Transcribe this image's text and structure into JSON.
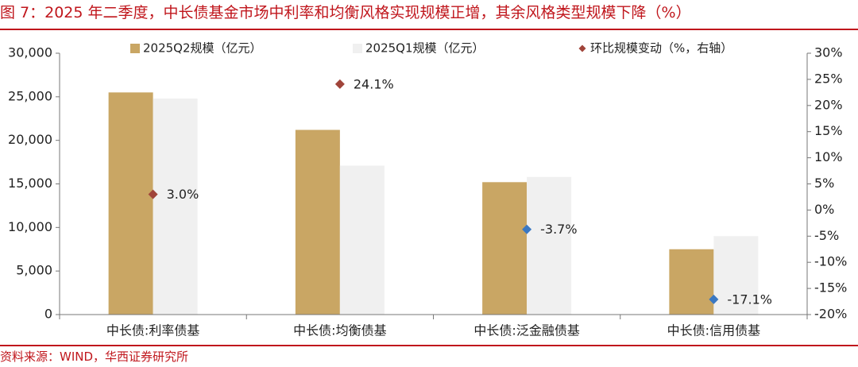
{
  "header": {
    "title": "图 7：2025 年二季度，中长债基金市场中利率和均衡风格实现规模正增，其余风格类型规模下降（%）"
  },
  "footer": {
    "source": "资料来源：WIND，华西证券研究所"
  },
  "colors": {
    "title_red": "#c0161c",
    "q2_bar": "#c9a664",
    "q1_bar": "#f0f0f0",
    "marker_positive": "#a0443a",
    "marker_negative": "#3a78c2"
  },
  "chart_data": {
    "type": "bar",
    "title": "",
    "categories": [
      "中长债:利率债基",
      "中长债:均衡债基",
      "中长债:泛金融债基",
      "中长债:信用债基"
    ],
    "series": [
      {
        "name": "2025Q2规模（亿元）",
        "kind": "bar",
        "axis": "left",
        "values": [
          25500,
          21200,
          15200,
          7500
        ]
      },
      {
        "name": "2025Q1规模（亿元）",
        "kind": "bar",
        "axis": "left",
        "values": [
          24800,
          17100,
          15800,
          9000
        ]
      },
      {
        "name": "环比规模变动（%，右轴）",
        "kind": "scatter",
        "axis": "right",
        "values": [
          3.0,
          24.1,
          -3.7,
          -17.1
        ]
      }
    ],
    "data_labels": [
      "3.0%",
      "24.1%",
      "-3.7%",
      "-17.1%"
    ],
    "left_axis": {
      "ylim": [
        0,
        30000
      ],
      "ticks": [
        0,
        5000,
        10000,
        15000,
        20000,
        25000,
        30000
      ],
      "tick_labels": [
        "0",
        "5,000",
        "10,000",
        "15,000",
        "20,000",
        "25,000",
        "30,000"
      ]
    },
    "right_axis": {
      "ylim": [
        -20,
        30
      ],
      "ticks": [
        -20,
        -15,
        -10,
        -5,
        0,
        5,
        10,
        15,
        20,
        25,
        30
      ],
      "tick_labels": [
        "-20%",
        "-15%",
        "-10%",
        "-5%",
        "0%",
        "5%",
        "10%",
        "15%",
        "20%",
        "25%",
        "30%"
      ]
    },
    "legend_position": "top",
    "grid": false
  }
}
